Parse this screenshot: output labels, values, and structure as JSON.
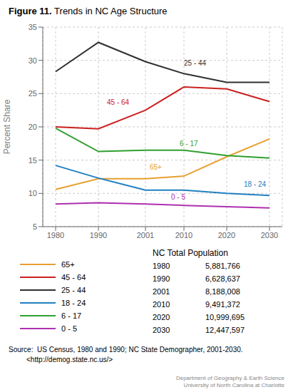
{
  "chart_data": {
    "type": "line",
    "title_bold": "Figure 11.",
    "title": "Trends in NC Age Structure",
    "y_label": "Percent Share",
    "x": [
      1980,
      1990,
      2001,
      2010,
      2020,
      2030
    ],
    "xlim": [
      1977,
      2033
    ],
    "xticks": [
      1980,
      1990,
      2001,
      2010,
      2020,
      2030
    ],
    "ylim": [
      5,
      35
    ],
    "yticks": [
      5,
      10,
      15,
      20,
      25,
      30,
      35
    ],
    "grid": true,
    "legend": "bottom",
    "series": [
      {
        "name": "65+",
        "color": "#E8A030",
        "values": [
          10.6,
          12.2,
          12.2,
          12.6,
          15.5,
          18.2
        ]
      },
      {
        "name": "45 - 64",
        "color": "#CC2020",
        "values": [
          20.0,
          19.7,
          22.5,
          26.0,
          25.7,
          23.8
        ]
      },
      {
        "name": "25 - 44",
        "color": "#303030",
        "values": [
          28.3,
          32.7,
          29.8,
          28.0,
          26.7,
          26.7
        ]
      },
      {
        "name": "18 - 24",
        "color": "#2080C0",
        "values": [
          14.2,
          12.3,
          10.5,
          10.5,
          10.0,
          9.7
        ]
      },
      {
        "name": "6 - 17",
        "color": "#30A030",
        "values": [
          19.8,
          16.3,
          16.5,
          16.5,
          15.7,
          15.3
        ]
      },
      {
        "name": "0 - 5",
        "color": "#B030B0",
        "values": [
          8.4,
          8.6,
          8.4,
          8.2,
          8.0,
          7.8
        ]
      }
    ],
    "annotations": [
      {
        "text": "25 - 44",
        "x": 2010,
        "y": 29.2
      },
      {
        "text": "45 - 64",
        "x": 1992,
        "y": 23.3
      },
      {
        "text": "6 - 17",
        "x": 2009,
        "y": 17.1
      },
      {
        "text": "65+",
        "x": 2002,
        "y": 13.6
      },
      {
        "text": "0 - 5",
        "x": 2007,
        "y": 9.1
      },
      {
        "text": "18 - 24",
        "x": 2024,
        "y": 11.0
      }
    ],
    "table": {
      "title": "NC Total Population",
      "rows": [
        [
          "1980",
          "5,881,766"
        ],
        [
          "1990",
          "6,628,637"
        ],
        [
          "2001",
          "8,188,008"
        ],
        [
          "2010",
          "9,491,372"
        ],
        [
          "2020",
          "10,999,695"
        ],
        [
          "2030",
          "12,447,597"
        ]
      ]
    },
    "source": [
      "Source:  US Census, 1980 and 1990; NC State Demographer, 2001-2030.",
      "         <http://demog.state.nc.us/>"
    ],
    "credit": "Department of Geography & Earth Science\nUniversity of North Carolina at Charlotte"
  }
}
